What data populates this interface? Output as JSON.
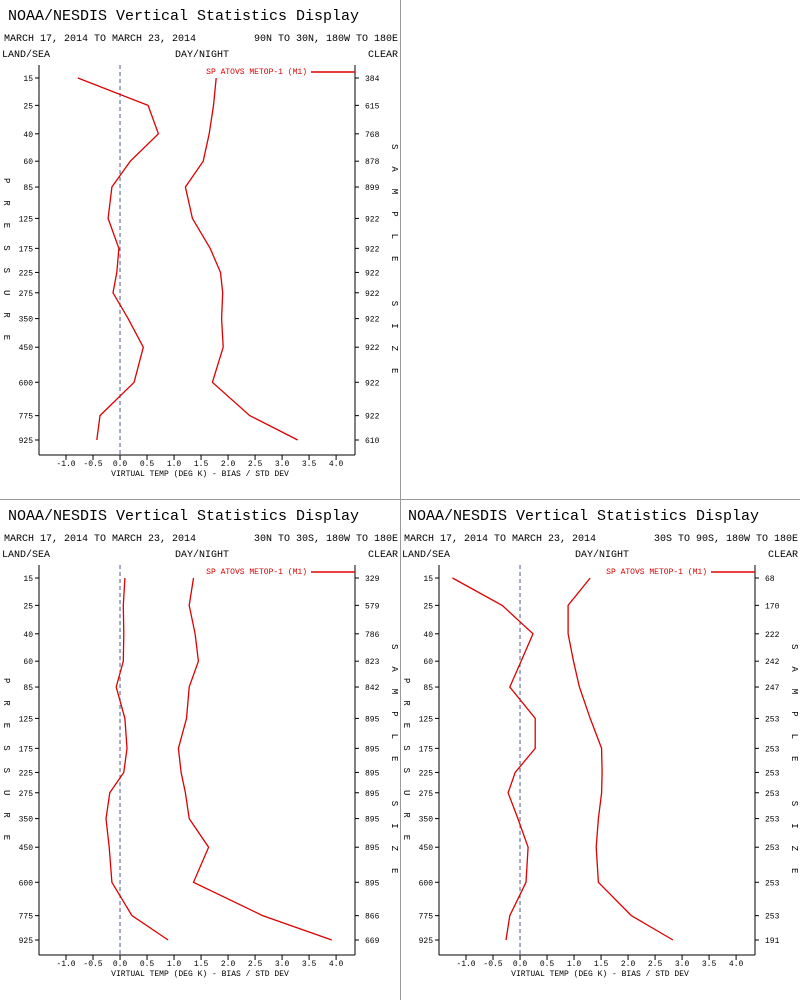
{
  "chart_data": [
    {
      "type": "line",
      "title": "NOAA/NESDIS Vertical Statistics Display",
      "subtitle": "MARCH 17, 2014 TO MARCH 23, 2014",
      "region": "90N TO 30N, 180W TO 180E",
      "land_sea": "LAND/SEA",
      "day_night": "DAY/NIGHT",
      "clear": "CLEAR",
      "ylabel": "PRESSURE",
      "y2label": "SAMPLE SIZE",
      "xlabel": "VIRTUAL TEMP (DEG K) - BIAS / STD DEV",
      "categories": [
        15,
        25,
        40,
        60,
        85,
        125,
        175,
        225,
        275,
        350,
        450,
        600,
        775,
        925
      ],
      "sample_size": [
        384,
        615,
        768,
        878,
        899,
        922,
        922,
        922,
        922,
        922,
        922,
        922,
        922,
        610
      ],
      "series": [
        {
          "name": "SP ATOVS METOP-1 (M1)",
          "color": "#dd0000",
          "values": [
            -0.78,
            0.52,
            0.71,
            0.19,
            -0.15,
            -0.22,
            -0.02,
            -0.06,
            -0.13,
            0.15,
            0.43,
            0.26,
            -0.37,
            -0.43
          ]
        },
        {
          "color": "#dd0000",
          "values": [
            1.78,
            1.73,
            1.65,
            1.54,
            1.21,
            1.34,
            1.67,
            1.86,
            1.9,
            1.88,
            1.91,
            1.71,
            2.4,
            3.29
          ]
        }
      ],
      "xlim": [
        -1.5,
        4.35
      ],
      "xticks": [
        {
          "value": -1,
          "label": "-1.0"
        },
        -0.5,
        {
          "value": 0,
          "label": "0.0"
        },
        0.5,
        {
          "value": 1,
          "label": "1.0"
        },
        1.5,
        {
          "value": 2,
          "label": "2.0"
        },
        2.5,
        {
          "value": 3,
          "label": "3.0"
        },
        3.5,
        {
          "value": 4,
          "label": "4.0"
        }
      ]
    },
    {
      "type": "line",
      "title": "NOAA/NESDIS Vertical Statistics Display",
      "subtitle": "MARCH 17, 2014 TO MARCH 23, 2014",
      "region": "30N TO 30S, 180W TO 180E",
      "land_sea": "LAND/SEA",
      "day_night": "DAY/NIGHT",
      "clear": "CLEAR",
      "ylabel": "PRESSURE",
      "y2label": "SAMPLE SIZE",
      "xlabel": "VIRTUAL TEMP (DEG K) - BIAS / STD DEV",
      "categories": [
        15,
        25,
        40,
        60,
        85,
        125,
        175,
        225,
        275,
        350,
        450,
        600,
        775,
        925
      ],
      "sample_size": [
        329,
        579,
        786,
        823,
        842,
        895,
        895,
        895,
        895,
        895,
        895,
        895,
        866,
        669
      ],
      "series": [
        {
          "name": "SP ATOVS METOP-1 (M1)",
          "color": "#dd0000",
          "values": [
            0.09,
            0.06,
            0.07,
            0.06,
            -0.07,
            0.09,
            0.13,
            0.07,
            -0.19,
            -0.26,
            -0.2,
            -0.15,
            0.22,
            0.89
          ]
        },
        {
          "color": "#dd0000",
          "values": [
            1.36,
            1.28,
            1.39,
            1.45,
            1.28,
            1.23,
            1.08,
            1.13,
            1.21,
            1.28,
            1.64,
            1.36,
            2.64,
            3.92
          ]
        }
      ],
      "xlim": [
        -1.5,
        4.35
      ],
      "xticks": [
        {
          "value": -1,
          "label": "-1.0"
        },
        -0.5,
        {
          "value": 0,
          "label": "0.0"
        },
        0.5,
        {
          "value": 1,
          "label": "1.0"
        },
        1.5,
        {
          "value": 2,
          "label": "2.0"
        },
        2.5,
        {
          "value": 3,
          "label": "3.0"
        },
        3.5,
        {
          "value": 4,
          "label": "4.0"
        }
      ]
    },
    {
      "type": "line",
      "title": "NOAA/NESDIS Vertical Statistics Display",
      "subtitle": "MARCH 17, 2014 TO MARCH 23, 2014",
      "region": "30S TO 90S, 180W TO 180E",
      "land_sea": "LAND/SEA",
      "day_night": "DAY/NIGHT",
      "clear": "CLEAR",
      "ylabel": "PRESSURE",
      "y2label": "SAMPLE SIZE",
      "xlabel": "VIRTUAL TEMP (DEG K) - BIAS / STD DEV",
      "categories": [
        15,
        25,
        40,
        60,
        85,
        125,
        175,
        225,
        275,
        350,
        450,
        600,
        775,
        925
      ],
      "sample_size": [
        68,
        170,
        222,
        242,
        247,
        253,
        253,
        253,
        253,
        253,
        253,
        253,
        253,
        191
      ],
      "series": [
        {
          "name": "SP ATOVS METOP-1 (M1)",
          "color": "#dd0000",
          "values": [
            -1.25,
            -0.33,
            0.24,
            0.02,
            -0.19,
            0.28,
            0.28,
            -0.09,
            -0.22,
            -0.04,
            0.15,
            0.11,
            -0.19,
            -0.26
          ]
        },
        {
          "color": "#dd0000",
          "values": [
            1.3,
            0.89,
            0.89,
            0.99,
            1.1,
            1.3,
            1.51,
            1.52,
            1.51,
            1.45,
            1.41,
            1.45,
            2.06,
            2.83
          ]
        }
      ],
      "xlim": [
        -1.5,
        4.35
      ],
      "xticks": [
        {
          "value": -1,
          "label": "-1.0"
        },
        -0.5,
        {
          "value": 0,
          "label": "0.0"
        },
        0.5,
        {
          "value": 1,
          "label": "1.0"
        },
        1.5,
        {
          "value": 2,
          "label": "2.0"
        },
        2.5,
        {
          "value": 3,
          "label": "3.0"
        },
        3.5,
        {
          "value": 4,
          "label": "4.0"
        }
      ]
    }
  ]
}
